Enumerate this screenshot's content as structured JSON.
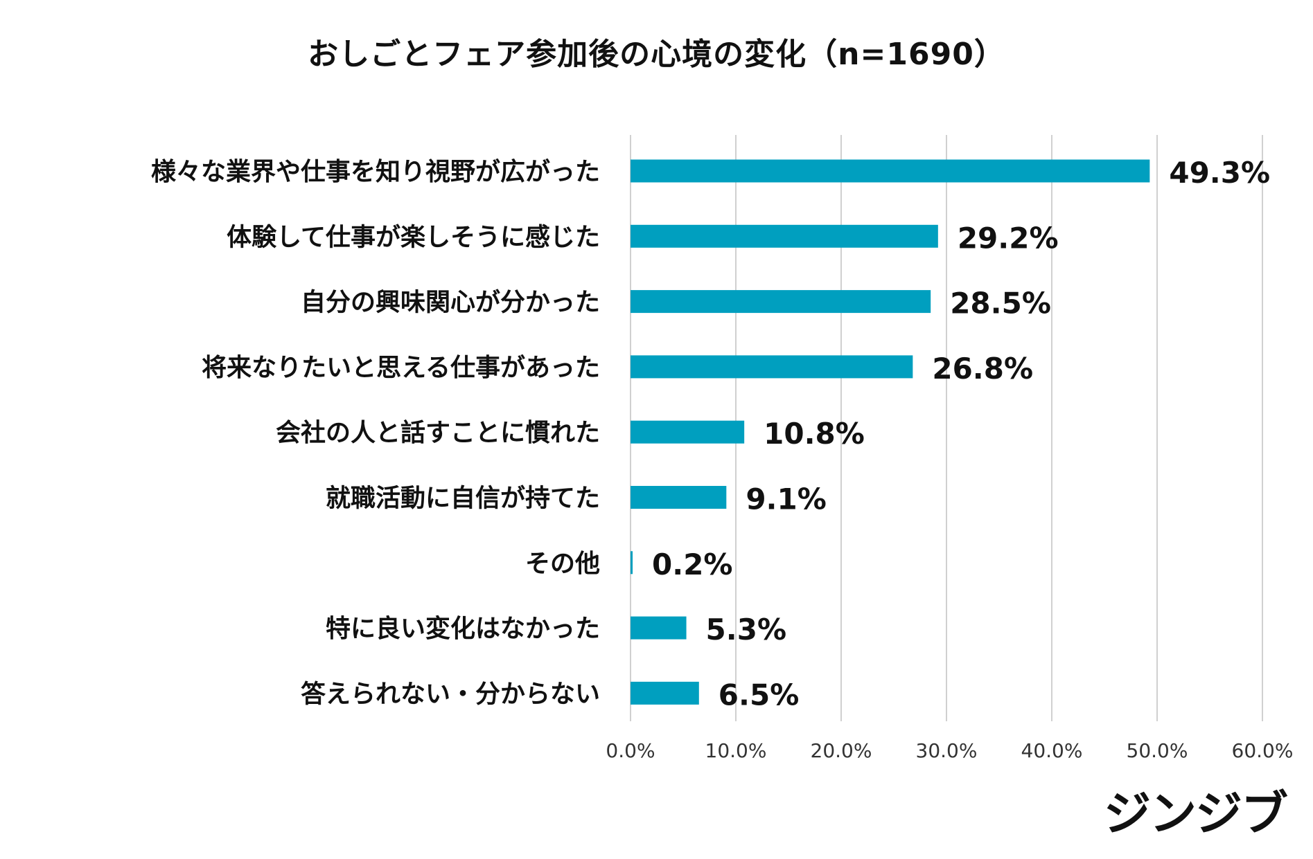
{
  "chart_data": {
    "type": "bar",
    "orientation": "horizontal",
    "title": "おしごとフェア参加後の心境の変化（n=1690）",
    "categories": [
      "様々な業界や仕事を知り視野が広がった",
      "体験して仕事が楽しそうに感じた",
      "自分の興味関心が分かった",
      "将来なりたいと思える仕事があった",
      "会社の人と話すことに慣れた",
      "就職活動に自信が持てた",
      "その他",
      "特に良い変化はなかった",
      "答えられない・分からない"
    ],
    "values": [
      49.3,
      29.2,
      28.5,
      26.8,
      10.8,
      9.1,
      0.2,
      5.3,
      6.5
    ],
    "value_labels": [
      "49.3%",
      "29.2%",
      "28.5%",
      "26.8%",
      "10.8%",
      "9.1%",
      "0.2%",
      "5.3%",
      "6.5%"
    ],
    "xlim": [
      0,
      60
    ],
    "ticks": [
      0,
      10,
      20,
      30,
      40,
      50,
      60
    ],
    "tick_labels": [
      "0.0%",
      "10.0%",
      "20.0%",
      "30.0%",
      "40.0%",
      "50.0%",
      "60.0%"
    ],
    "grid": true,
    "xlabel": "",
    "ylabel": "",
    "bar_color": "#009fbf",
    "grid_color": "#d0d0d0"
  },
  "brand": {
    "text": "ジンジブ"
  }
}
